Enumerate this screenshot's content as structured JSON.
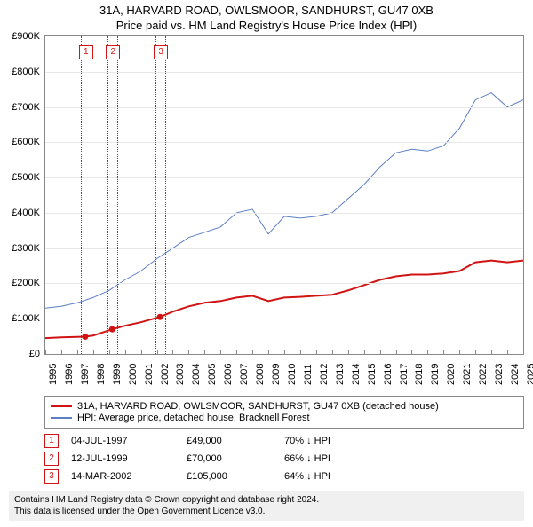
{
  "title": "31A, HARVARD ROAD, OWLSMOOR, SANDHURST, GU47 0XB",
  "subtitle": "Price paid vs. HM Land Registry's House Price Index (HPI)",
  "chart": {
    "type": "line",
    "xlim": [
      1995,
      2025
    ],
    "ylim": [
      0,
      900000
    ],
    "ytick_step": 100000,
    "ylabels": [
      "£0",
      "£100K",
      "£200K",
      "£300K",
      "£400K",
      "£500K",
      "£600K",
      "£700K",
      "£800K",
      "£900K"
    ],
    "xlabels": [
      "1995",
      "1996",
      "1997",
      "1998",
      "1999",
      "2000",
      "2001",
      "2002",
      "2003",
      "2004",
      "2005",
      "2006",
      "2007",
      "2008",
      "2009",
      "2010",
      "2011",
      "2012",
      "2013",
      "2014",
      "2015",
      "2016",
      "2017",
      "2018",
      "2019",
      "2020",
      "2021",
      "2022",
      "2023",
      "2024",
      "2025"
    ],
    "background_color": "#ffffff",
    "grid_color": "#e8e8e8",
    "series": {
      "address": {
        "color": "#d01414",
        "width": 2,
        "label": "31A, HARVARD ROAD, OWLSMOOR, SANDHURST, GU47 0XB (detached house)",
        "points": [
          [
            1995,
            45000
          ],
          [
            1996,
            47000
          ],
          [
            1997.5,
            49000
          ],
          [
            1998,
            52000
          ],
          [
            1999.2,
            70000
          ],
          [
            2000,
            80000
          ],
          [
            2001,
            90000
          ],
          [
            2002.2,
            105000
          ],
          [
            2003,
            120000
          ],
          [
            2004,
            135000
          ],
          [
            2005,
            145000
          ],
          [
            2006,
            150000
          ],
          [
            2007,
            160000
          ],
          [
            2008,
            165000
          ],
          [
            2009,
            150000
          ],
          [
            2010,
            160000
          ],
          [
            2011,
            162000
          ],
          [
            2012,
            165000
          ],
          [
            2013,
            168000
          ],
          [
            2014,
            180000
          ],
          [
            2015,
            195000
          ],
          [
            2016,
            210000
          ],
          [
            2017,
            220000
          ],
          [
            2018,
            225000
          ],
          [
            2019,
            225000
          ],
          [
            2020,
            228000
          ],
          [
            2021,
            235000
          ],
          [
            2022,
            260000
          ],
          [
            2023,
            265000
          ],
          [
            2024,
            260000
          ],
          [
            2025,
            265000
          ]
        ],
        "markers": [
          {
            "x": 1997.5,
            "y": 49000
          },
          {
            "x": 1999.2,
            "y": 70000
          },
          {
            "x": 2002.2,
            "y": 105000
          }
        ]
      },
      "hpi": {
        "color": "#5a7fc4",
        "width": 1,
        "label": "HPI: Average price, detached house, Bracknell Forest",
        "points": [
          [
            1995,
            130000
          ],
          [
            1996,
            135000
          ],
          [
            1997,
            145000
          ],
          [
            1998,
            160000
          ],
          [
            1999,
            180000
          ],
          [
            2000,
            210000
          ],
          [
            2001,
            235000
          ],
          [
            2002,
            270000
          ],
          [
            2003,
            300000
          ],
          [
            2004,
            330000
          ],
          [
            2005,
            345000
          ],
          [
            2006,
            360000
          ],
          [
            2007,
            400000
          ],
          [
            2008,
            410000
          ],
          [
            2009,
            340000
          ],
          [
            2010,
            390000
          ],
          [
            2011,
            385000
          ],
          [
            2012,
            390000
          ],
          [
            2013,
            400000
          ],
          [
            2014,
            440000
          ],
          [
            2015,
            480000
          ],
          [
            2016,
            530000
          ],
          [
            2017,
            570000
          ],
          [
            2018,
            580000
          ],
          [
            2019,
            575000
          ],
          [
            2020,
            590000
          ],
          [
            2021,
            640000
          ],
          [
            2022,
            720000
          ],
          [
            2023,
            740000
          ],
          [
            2024,
            700000
          ],
          [
            2025,
            720000
          ]
        ]
      }
    },
    "event_bands": [
      {
        "num": "1",
        "x": 1997.5,
        "color": "#d01414"
      },
      {
        "num": "2",
        "x": 1999.2,
        "color": "#d01414"
      },
      {
        "num": "3",
        "x": 2002.2,
        "color": "#d01414"
      }
    ]
  },
  "legend": [
    {
      "color": "#d01414",
      "label": "31A, HARVARD ROAD, OWLSMOOR, SANDHURST, GU47 0XB (detached house)"
    },
    {
      "color": "#5a7fc4",
      "label": "HPI: Average price, detached house, Bracknell Forest"
    }
  ],
  "events": [
    {
      "num": "1",
      "color": "#d01414",
      "date": "04-JUL-1997",
      "price": "£49,000",
      "delta": "70% ↓ HPI"
    },
    {
      "num": "2",
      "color": "#d01414",
      "date": "12-JUL-1999",
      "price": "£70,000",
      "delta": "66% ↓ HPI"
    },
    {
      "num": "3",
      "color": "#d01414",
      "date": "14-MAR-2002",
      "price": "£105,000",
      "delta": "64% ↓ HPI"
    }
  ],
  "footer": {
    "line1": "Contains HM Land Registry data © Crown copyright and database right 2024.",
    "line2": "This data is licensed under the Open Government Licence v3.0."
  }
}
